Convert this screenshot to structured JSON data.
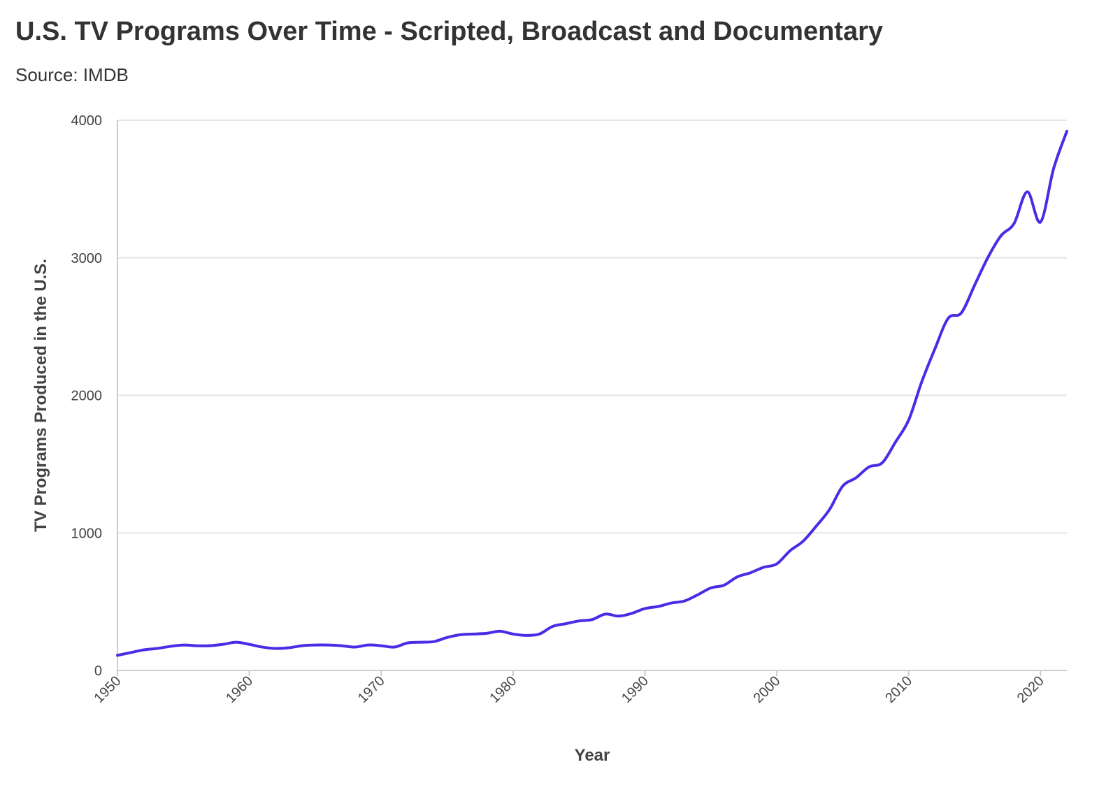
{
  "title": "U.S. TV Programs Over Time - Scripted, Broadcast and Documentary",
  "subtitle": "Source: IMDB",
  "colors": {
    "line": "#4a2ce6",
    "text": "#333333",
    "grid": "#e6e6e6"
  },
  "chart_data": {
    "type": "line",
    "xlabel": "Year",
    "ylabel": "TV Programs Produced in the U.S.",
    "xlim": [
      1950,
      2022
    ],
    "ylim": [
      0,
      4000
    ],
    "x_ticks": [
      1950,
      1960,
      1970,
      1980,
      1990,
      2000,
      2010,
      2020
    ],
    "y_ticks": [
      0,
      1000,
      2000,
      3000,
      4000
    ],
    "grid": true,
    "series": [
      {
        "x": [
          1950,
          1951,
          1952,
          1953,
          1954,
          1955,
          1956,
          1957,
          1958,
          1959,
          1960,
          1961,
          1962,
          1963,
          1964,
          1965,
          1966,
          1967,
          1968,
          1969,
          1970,
          1971,
          1972,
          1973,
          1974,
          1975,
          1976,
          1977,
          1978,
          1979,
          1980,
          1981,
          1982,
          1983,
          1984,
          1985,
          1986,
          1987,
          1988,
          1989,
          1990,
          1991,
          1992,
          1993,
          1994,
          1995,
          1996,
          1997,
          1998,
          1999,
          2000,
          2001,
          2002,
          2003,
          2004,
          2005,
          2006,
          2007,
          2008,
          2009,
          2010,
          2011,
          2012,
          2013,
          2014,
          2015,
          2016,
          2017,
          2018,
          2019,
          2020,
          2021,
          2022
        ],
        "y": [
          110,
          130,
          150,
          160,
          175,
          185,
          180,
          180,
          190,
          205,
          190,
          170,
          160,
          165,
          180,
          185,
          185,
          180,
          170,
          185,
          180,
          170,
          200,
          205,
          210,
          240,
          260,
          265,
          270,
          285,
          265,
          255,
          265,
          320,
          340,
          360,
          370,
          410,
          395,
          415,
          450,
          465,
          490,
          505,
          550,
          600,
          620,
          680,
          710,
          750,
          775,
          870,
          940,
          1050,
          1170,
          1340,
          1400,
          1480,
          1510,
          1660,
          1820,
          2100,
          2340,
          2560,
          2600,
          2800,
          3000,
          3160,
          3250,
          3480,
          3260,
          3650,
          3920
        ]
      }
    ]
  }
}
